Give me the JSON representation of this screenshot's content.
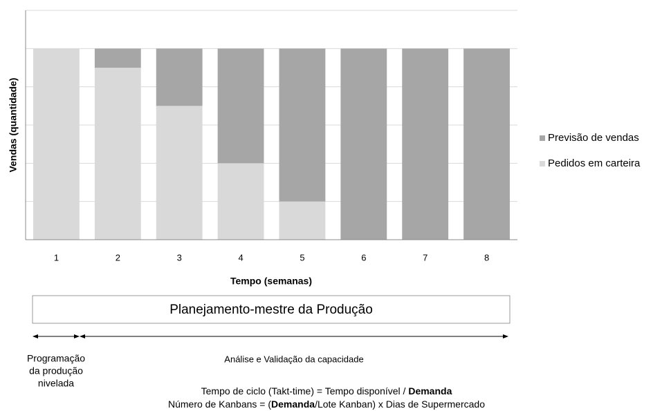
{
  "chart_data": {
    "type": "stacked_bar",
    "x_label": "Tempo (semanas)",
    "y_label": "Vendas (quantidade)",
    "categories": [
      "1",
      "2",
      "3",
      "4",
      "5",
      "6",
      "7",
      "8"
    ],
    "series": [
      {
        "name": "Pedidos em carteira",
        "color": "#d9d9d9",
        "values": [
          100,
          90,
          70,
          40,
          20,
          0,
          0,
          0
        ]
      },
      {
        "name": "Previsão de vendas",
        "color": "#a6a6a6",
        "values": [
          0,
          10,
          30,
          60,
          80,
          100,
          100,
          100
        ]
      }
    ],
    "ylim": [
      0,
      120
    ],
    "yticks": [
      20,
      40,
      60,
      80,
      100,
      120
    ],
    "grid": true,
    "legend": "right"
  },
  "annotations": {
    "box": "Planejamento-mestre da Produção",
    "left_label": [
      "Programação",
      "da produção",
      "nivelada"
    ],
    "right_label": "Análise e Validação da capacidade",
    "formulas": [
      [
        {
          "text": "Tempo de ciclo (Takt-time) = Tempo disponível  / ",
          "bold": false
        },
        {
          "text": "Demanda",
          "bold": true
        }
      ],
      [
        {
          "text": "Número de Kanbans = (",
          "bold": false
        },
        {
          "text": "Demanda",
          "bold": true
        },
        {
          "text": "/Lote Kanban) x Dias de Supermercado",
          "bold": false
        }
      ]
    ]
  }
}
